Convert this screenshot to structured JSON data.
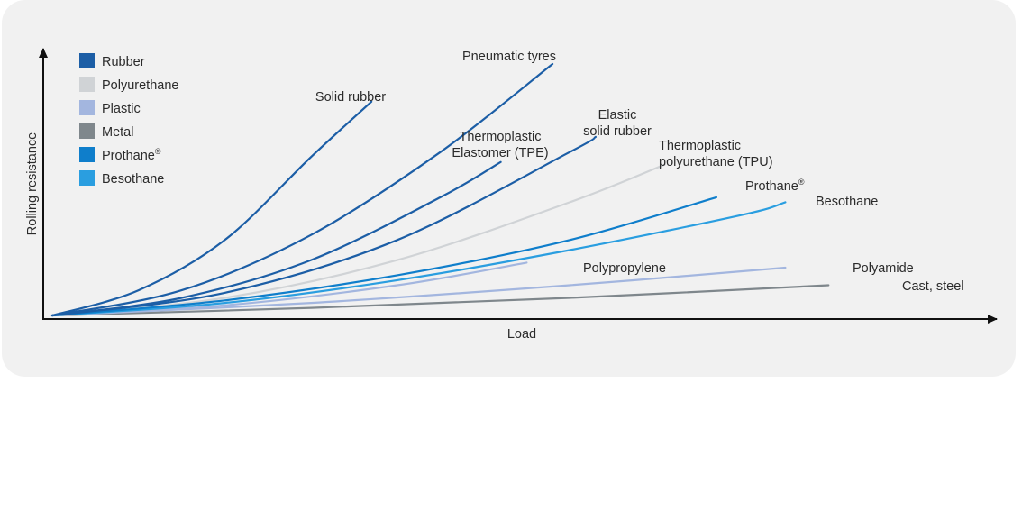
{
  "chart_data": {
    "type": "line",
    "title": "",
    "xlabel": "Load",
    "ylabel": "Rolling resistance",
    "grid": false,
    "legend_placement": "top-left",
    "xlim": [
      0,
      1
    ],
    "ylim": [
      0,
      1
    ],
    "legend": [
      {
        "name": "Rubber",
        "color": "#1c5ea6"
      },
      {
        "name": "Polyurethane",
        "color": "#d0d3d6"
      },
      {
        "name": "Plastic",
        "color": "#a3b6df"
      },
      {
        "name": "Metal",
        "color": "#7f878c"
      },
      {
        "name": "Prothane",
        "sup": "®",
        "color": "#0f7ecb"
      },
      {
        "name": "Besothane",
        "color": "#2a9ee0"
      }
    ],
    "series": [
      {
        "name": "Solid rubber",
        "material": "Rubber",
        "color": "#1c5ea6",
        "x": [
          0.0,
          0.1,
          0.2,
          0.3,
          0.37
        ],
        "y": [
          0.0,
          0.1,
          0.3,
          0.63,
          0.85
        ]
      },
      {
        "name": "Pneumatic tyres",
        "material": "Rubber",
        "color": "#1c5ea6",
        "x": [
          0.0,
          0.15,
          0.3,
          0.45,
          0.58
        ],
        "y": [
          0.0,
          0.1,
          0.32,
          0.65,
          1.0
        ]
      },
      {
        "name": "Thermoplastic Elastomer (TPE)",
        "material": "Rubber",
        "color": "#1c5ea6",
        "x": [
          0.0,
          0.15,
          0.3,
          0.45,
          0.52
        ],
        "y": [
          0.0,
          0.07,
          0.22,
          0.47,
          0.61
        ]
      },
      {
        "name": "Elastic solid rubber",
        "material": "Rubber",
        "color": "#1c5ea6",
        "x": [
          0.0,
          0.2,
          0.4,
          0.6,
          0.63
        ],
        "y": [
          0.0,
          0.09,
          0.3,
          0.65,
          0.71
        ]
      },
      {
        "name": "Thermoplastic polyurethane (TPU)",
        "material": "Polyurethane",
        "color": "#d0d3d6",
        "x": [
          0.0,
          0.2,
          0.4,
          0.6,
          0.71
        ],
        "y": [
          0.0,
          0.07,
          0.22,
          0.45,
          0.6
        ]
      },
      {
        "name": "Prothane",
        "sup": "®",
        "material": "Prothane",
        "color": "#0f7ecb",
        "x": [
          0.0,
          0.2,
          0.4,
          0.6,
          0.77
        ],
        "y": [
          0.0,
          0.06,
          0.16,
          0.3,
          0.47
        ]
      },
      {
        "name": "Besothane",
        "material": "Besothane",
        "color": "#2a9ee0",
        "x": [
          0.0,
          0.2,
          0.4,
          0.6,
          0.8,
          0.85
        ],
        "y": [
          0.0,
          0.05,
          0.14,
          0.26,
          0.4,
          0.45
        ]
      },
      {
        "name": "Polypropylene",
        "material": "Plastic",
        "color": "#a3b6df",
        "x": [
          0.0,
          0.2,
          0.4,
          0.55
        ],
        "y": [
          0.0,
          0.04,
          0.12,
          0.21
        ]
      },
      {
        "name": "Polyamide",
        "material": "Plastic",
        "color": "#a3b6df",
        "x": [
          0.0,
          0.3,
          0.6,
          0.85
        ],
        "y": [
          0.0,
          0.05,
          0.12,
          0.19
        ]
      },
      {
        "name": "Cast, steel",
        "material": "Metal",
        "color": "#7f878c",
        "x": [
          0.0,
          0.3,
          0.6,
          0.9
        ],
        "y": [
          0.0,
          0.03,
          0.07,
          0.12
        ]
      }
    ]
  }
}
